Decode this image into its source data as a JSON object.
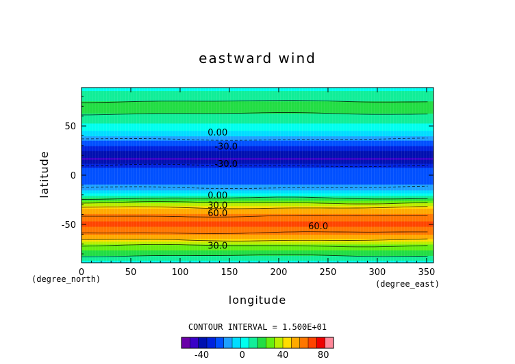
{
  "chart_data": {
    "type": "heatmap",
    "title": "eastward wind",
    "xlabel": "longitude",
    "ylabel": "latitude",
    "x_unit": "(degree_east)",
    "y_unit": "(degree_north)",
    "xlim": [
      0,
      357
    ],
    "ylim": [
      -89,
      89
    ],
    "x_ticks": [
      0,
      50,
      100,
      150,
      200,
      250,
      300,
      350
    ],
    "y_ticks": [
      -50,
      0,
      50
    ],
    "contour_interval_label": "CONTOUR INTERVAL = 1.500E+01",
    "profile": {
      "lat": [
        89,
        80,
        70,
        60,
        52,
        46,
        42,
        38,
        35,
        31,
        28,
        24,
        20,
        16,
        12,
        9,
        5,
        0,
        -5,
        -10,
        -15,
        -19,
        -22,
        -26,
        -30,
        -34,
        -39,
        -44,
        -50,
        -55,
        -60,
        -65,
        -70,
        -75,
        -80,
        -85,
        -89
      ],
      "u": [
        3,
        12,
        18,
        14,
        6,
        0,
        -6,
        -12,
        -18,
        -24,
        -30,
        -36,
        -42,
        -44,
        -36,
        -28,
        -24,
        -22,
        -21,
        -18,
        -12,
        0,
        10,
        24,
        36,
        48,
        56,
        64,
        66,
        64,
        58,
        48,
        32,
        26,
        18,
        10,
        4
      ]
    },
    "contour_labels": [
      {
        "text": "0.00",
        "lon": 128,
        "lat": 43
      },
      {
        "text": "-30.0",
        "lon": 135,
        "lat": 29
      },
      {
        "text": "-30.0",
        "lon": 135,
        "lat": 11
      },
      {
        "text": "0.00",
        "lon": 128,
        "lat": -21
      },
      {
        "text": "30.0",
        "lon": 128,
        "lat": -31
      },
      {
        "text": "60.0",
        "lon": 128,
        "lat": -39
      },
      {
        "text": "60.0",
        "lon": 230,
        "lat": -52
      },
      {
        "text": "30.0",
        "lon": 128,
        "lat": -72
      }
    ],
    "colorbar": {
      "ticks": [
        -40,
        0,
        40,
        80
      ],
      "range": [
        -60,
        90
      ],
      "colors": [
        "#6a00a8",
        "#3a00c8",
        "#0010b0",
        "#0022dd",
        "#0050ff",
        "#1ea0ff",
        "#00ddff",
        "#00ffee",
        "#11ee99",
        "#22dd44",
        "#66ee11",
        "#bbee00",
        "#ffdd00",
        "#ffaa00",
        "#ff7700",
        "#ff4400",
        "#ee0000",
        "#ff8899"
      ]
    }
  }
}
